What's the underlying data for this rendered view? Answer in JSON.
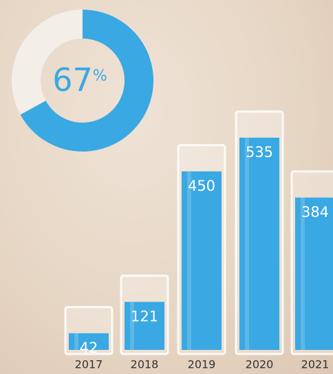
{
  "chart_data": [
    {
      "type": "donut",
      "value": 67,
      "unit": "%",
      "color": "#3aa8e2",
      "track_color": "#f3eee8"
    },
    {
      "type": "bar",
      "categories": [
        "2017",
        "2018",
        "2019",
        "2020",
        "2021"
      ],
      "values": [
        42,
        121,
        450,
        535,
        384
      ],
      "color": "#3aa8e2"
    }
  ]
}
